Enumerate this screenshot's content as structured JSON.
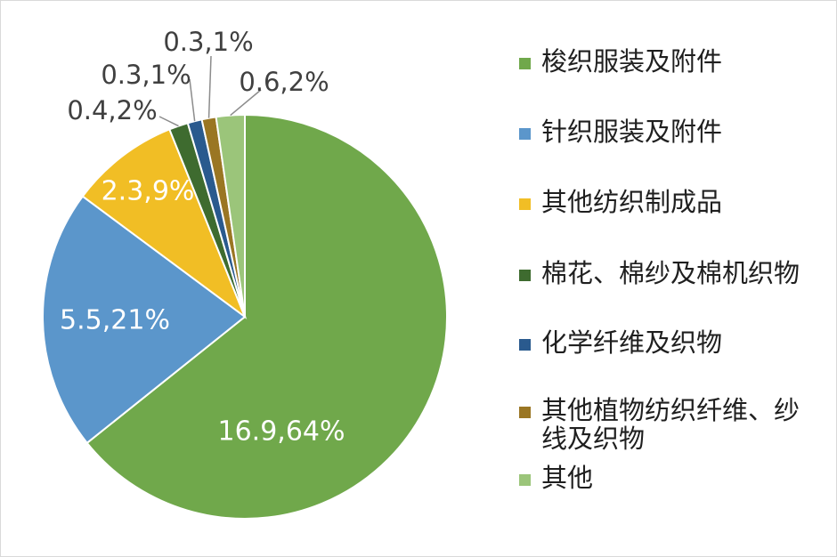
{
  "chart_data": {
    "type": "pie",
    "title": "",
    "slices": [
      {
        "name": "梭织服装及附件",
        "value": 16.9,
        "percent": 64,
        "label": "16.9,64%",
        "color": "#70a84b"
      },
      {
        "name": "针织服装及附件",
        "value": 5.5,
        "percent": 21,
        "label": "5.5,21%",
        "color": "#5b96cb"
      },
      {
        "name": "其他纺织制成品",
        "value": 2.3,
        "percent": 9,
        "label": "2.3,9%",
        "color": "#f1be25"
      },
      {
        "name": "棉花、棉纱及棉机织物",
        "value": 0.4,
        "percent": 2,
        "label": "0.4,2%",
        "color": "#3e6b2f"
      },
      {
        "name": "化学纤维及织物",
        "value": 0.3,
        "percent": 1,
        "label": "0.3,1%",
        "color": "#2a5a8e"
      },
      {
        "name": "其他植物纺织纤维、纱线及织物",
        "value": 0.3,
        "percent": 1,
        "label": "0.3,1%",
        "color": "#9a7623"
      },
      {
        "name": "其他",
        "value": 0.6,
        "percent": 2,
        "label": "0.6,2%",
        "color": "#9bc57a"
      }
    ],
    "legend_position": "right",
    "label_colors": {
      "inside": "#ffffff",
      "outside": "#404040"
    },
    "leader_line_color": "#8c8c8c"
  },
  "legend": {
    "items": [
      {
        "label": "梭织服装及附件",
        "color": "#70a84b"
      },
      {
        "label": "针织服装及附件",
        "color": "#5b96cb"
      },
      {
        "label": "其他纺织制成品",
        "color": "#f1be25"
      },
      {
        "label": "棉花、棉纱及棉机织物",
        "color": "#3e6b2f"
      },
      {
        "label": "化学纤维及织物",
        "color": "#2a5a8e"
      },
      {
        "label": "其他植物纺织纤维、纱线及织物",
        "color": "#9a7623"
      },
      {
        "label": "其他",
        "color": "#9bc57a"
      }
    ]
  }
}
